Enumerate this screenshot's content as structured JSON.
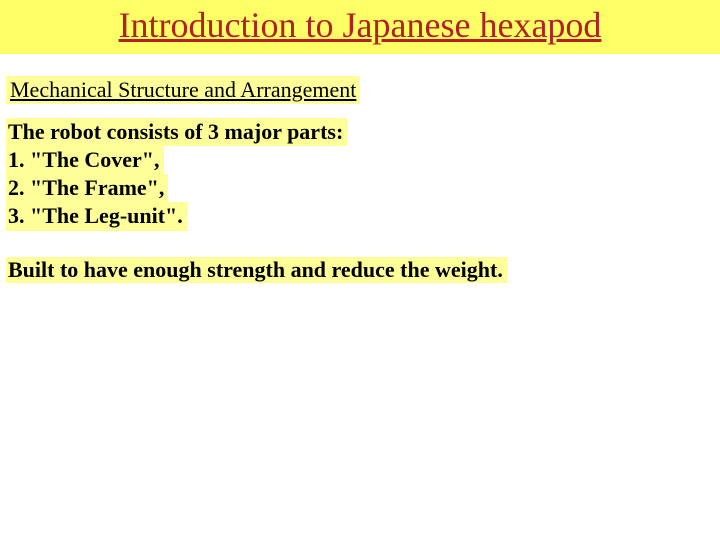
{
  "colors": {
    "title_bg": "#ffff66",
    "highlight_bg": "#ffff99",
    "title_text": "#b22222",
    "body_text": "#000000",
    "page_bg": "#ffffff"
  },
  "typography": {
    "title_fontsize": 36,
    "subtitle_fontsize": 22,
    "body_fontsize": 22,
    "font_family": "Times New Roman"
  },
  "title": "Introduction to Japanese hexapod",
  "subtitle": "Mechanical Structure and Arrangement",
  "parts_intro": "The robot consists of 3 major parts:",
  "parts": [
    "1. \"The Cover\",",
    "2. \"The Frame\",",
    "3. \"The Leg-unit\"."
  ],
  "summary": "Built to have enough strength and reduce the weight."
}
